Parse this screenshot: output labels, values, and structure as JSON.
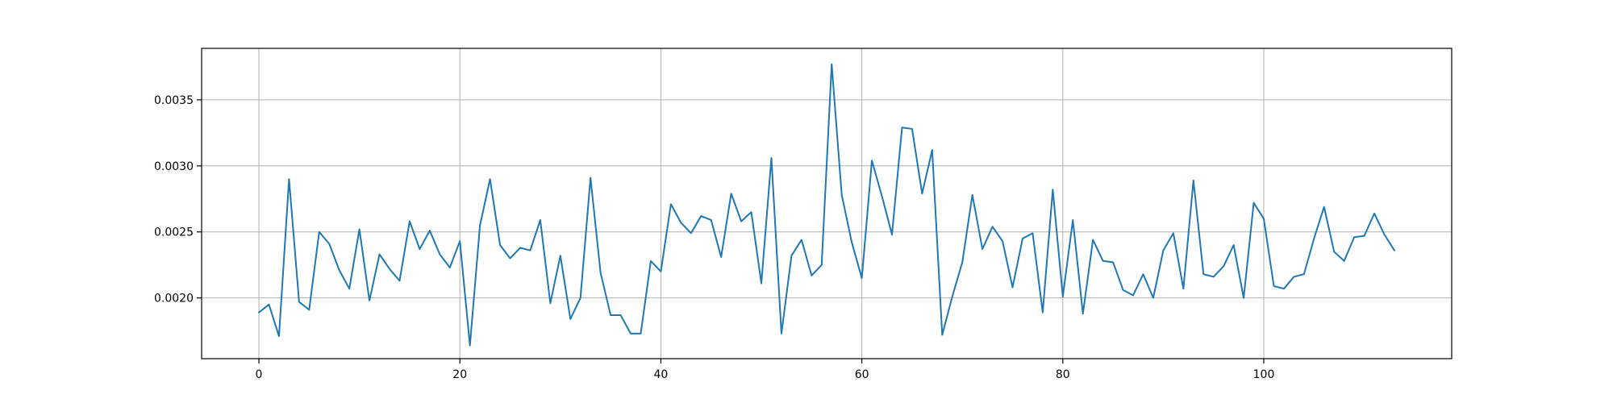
{
  "chart_data": {
    "type": "line",
    "title": "",
    "xlabel": "",
    "ylabel": "",
    "xlim": [
      -5.7,
      118.7
    ],
    "ylim": [
      0.00154,
      0.00389
    ],
    "grid": true,
    "x_ticks": [
      0,
      20,
      40,
      60,
      80,
      100
    ],
    "x_tick_labels": [
      "0",
      "20",
      "40",
      "60",
      "80",
      "100"
    ],
    "y_ticks": [
      0.002,
      0.0025,
      0.003,
      0.0035
    ],
    "y_tick_labels": [
      "0.0020",
      "0.0025",
      "0.0030",
      "0.0035"
    ],
    "series": [
      {
        "color": "#1f77b4",
        "x": [
          0,
          1,
          2,
          3,
          4,
          5,
          6,
          7,
          8,
          9,
          10,
          11,
          12,
          13,
          14,
          15,
          16,
          17,
          18,
          19,
          20,
          21,
          22,
          23,
          24,
          25,
          26,
          27,
          28,
          29,
          30,
          31,
          32,
          33,
          34,
          35,
          36,
          37,
          38,
          39,
          40,
          41,
          42,
          43,
          44,
          45,
          46,
          47,
          48,
          49,
          50,
          51,
          52,
          53,
          54,
          55,
          56,
          57,
          58,
          59,
          60,
          61,
          62,
          63,
          64,
          65,
          66,
          67,
          68,
          69,
          70,
          71,
          72,
          73,
          74,
          75,
          76,
          77,
          78,
          79,
          80,
          81,
          82,
          83,
          84,
          85,
          86,
          87,
          88,
          89,
          90,
          91,
          92,
          93,
          94,
          95,
          96,
          97,
          98,
          99,
          100,
          101,
          102,
          103,
          104,
          105,
          106,
          107,
          108,
          109,
          110,
          111,
          112,
          113
        ],
        "values": [
          0.00189,
          0.00195,
          0.00171,
          0.0029,
          0.00197,
          0.00191,
          0.0025,
          0.00241,
          0.00221,
          0.00207,
          0.00252,
          0.00198,
          0.00233,
          0.00222,
          0.00213,
          0.00258,
          0.00237,
          0.00251,
          0.00233,
          0.00223,
          0.00243,
          0.00164,
          0.00255,
          0.0029,
          0.0024,
          0.0023,
          0.00238,
          0.00236,
          0.00259,
          0.00196,
          0.00232,
          0.00184,
          0.002,
          0.00291,
          0.00219,
          0.00187,
          0.00187,
          0.00173,
          0.00173,
          0.00228,
          0.0022,
          0.00271,
          0.00257,
          0.00249,
          0.00262,
          0.00259,
          0.00231,
          0.00279,
          0.00258,
          0.00265,
          0.00211,
          0.00306,
          0.00173,
          0.00232,
          0.00244,
          0.00217,
          0.00225,
          0.00377,
          0.00278,
          0.00242,
          0.00215,
          0.00304,
          0.00277,
          0.00248,
          0.00329,
          0.00328,
          0.00279,
          0.00312,
          0.00172,
          0.00201,
          0.00227,
          0.00278,
          0.00237,
          0.00254,
          0.00243,
          0.00208,
          0.00245,
          0.00249,
          0.00189,
          0.00282,
          0.00201,
          0.00259,
          0.00188,
          0.00244,
          0.00228,
          0.00227,
          0.00206,
          0.00202,
          0.00218,
          0.002,
          0.00236,
          0.00249,
          0.00207,
          0.00289,
          0.00218,
          0.00216,
          0.00224,
          0.0024,
          0.002,
          0.00272,
          0.0026,
          0.00209,
          0.00207,
          0.00216,
          0.00218,
          0.00245,
          0.00269,
          0.00235,
          0.00228,
          0.00246,
          0.00247,
          0.00264,
          0.00248,
          0.00236
        ]
      }
    ]
  }
}
